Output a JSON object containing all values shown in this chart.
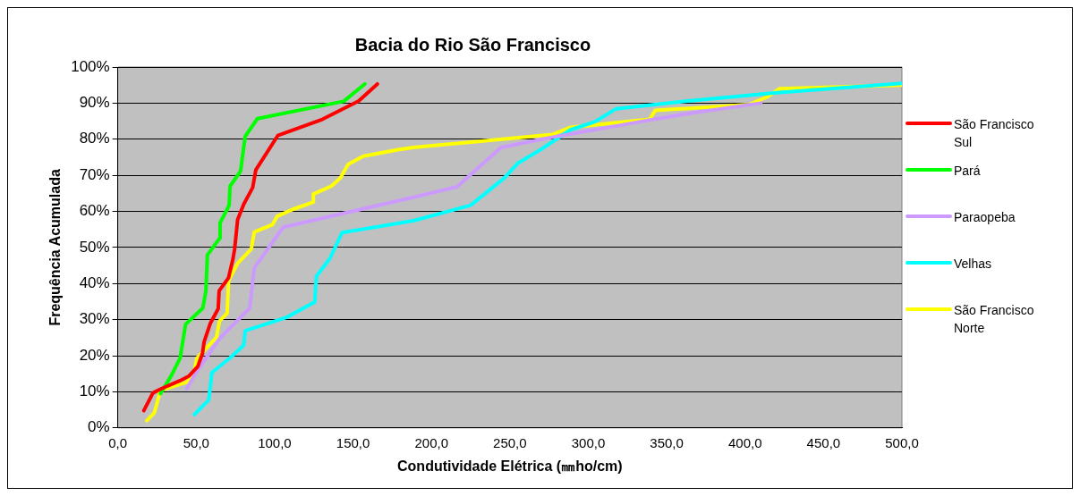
{
  "chart_data": {
    "type": "line",
    "title": "Bacia do Rio São Francisco",
    "xlabel": "Condutividade Elétrica (㎜ho/cm)",
    "ylabel": "Frequência Acumulada",
    "xlim": [
      0,
      500
    ],
    "xticks": [
      {
        "value": 0,
        "label": "0,0"
      },
      {
        "value": 50,
        "label": "50,0"
      },
      {
        "value": 100,
        "label": "100,0"
      },
      {
        "value": 150,
        "label": "150,0"
      },
      {
        "value": 200,
        "label": "200,0"
      },
      {
        "value": 250,
        "label": "250,0"
      },
      {
        "value": 300,
        "label": "300,0"
      },
      {
        "value": 350,
        "label": "350,0"
      },
      {
        "value": 400,
        "label": "400,0"
      },
      {
        "value": 450,
        "label": "450,0"
      },
      {
        "value": 500,
        "label": "500,0"
      }
    ],
    "ylim": [
      0,
      100
    ],
    "yticks": [
      {
        "value": 0,
        "label": "0%"
      },
      {
        "value": 10,
        "label": "10%"
      },
      {
        "value": 20,
        "label": "20%"
      },
      {
        "value": 30,
        "label": "30%"
      },
      {
        "value": 40,
        "label": "40%"
      },
      {
        "value": 50,
        "label": "50%"
      },
      {
        "value": 60,
        "label": "60%"
      },
      {
        "value": 70,
        "label": "70%"
      },
      {
        "value": 80,
        "label": "80%"
      },
      {
        "value": 90,
        "label": "90%"
      },
      {
        "value": 100,
        "label": "100%"
      }
    ],
    "grid": "y",
    "legend": "right",
    "marker": "none",
    "line_style": "solid",
    "series": [
      {
        "name": "São Francisco Sul",
        "color": "#ff0000",
        "x": [
          16.6,
          22.4,
          28,
          39.7,
          45.4,
          51,
          54,
          55,
          59,
          64,
          64.6,
          70.6,
          73.5,
          74.5,
          76.4,
          80.3,
          86,
          88,
          102,
          130.4,
          153.6,
          165.5
        ],
        "values": [
          4.8,
          9.7,
          10.9,
          13.1,
          14.4,
          17,
          20.7,
          23.8,
          29,
          33,
          38,
          41.6,
          47,
          49.6,
          57.7,
          62,
          66.6,
          71.5,
          81,
          85.5,
          90.6,
          95.3
        ]
      },
      {
        "name": "Pará",
        "color": "#00ff00",
        "x": [
          27.2,
          34,
          39.7,
          43.2,
          54.2,
          56.2,
          57.1,
          64.8,
          65.2,
          71,
          71.6,
          78.3,
          81.2,
          89,
          144,
          157.5
        ],
        "values": [
          9.5,
          14.4,
          19.3,
          28.7,
          33.2,
          38,
          47.9,
          52.5,
          56.8,
          61.7,
          67,
          71.2,
          80.8,
          85.7,
          90.5,
          95.3
        ]
      },
      {
        "name": "Paraopeba",
        "color": "#cc99ff",
        "x": [
          44,
          49.4,
          64.8,
          84.1,
          87,
          105.4,
          188.4,
          216.3,
          244.4,
          275.2,
          339,
          362,
          410
        ],
        "values": [
          10.9,
          15,
          24.7,
          33.2,
          44.3,
          55.6,
          63.9,
          66.8,
          77.7,
          80.4,
          85.3,
          87,
          90
        ]
      },
      {
        "name": "Velhas",
        "color": "#00ffff",
        "x": [
          48.8,
          58,
          60,
          72.6,
          80.3,
          81.2,
          108,
          125.6,
          126.6,
          135.3,
          143,
          188.4,
          225,
          246.3,
          255,
          269.5,
          288.7,
          304,
          317.6,
          362,
          420,
          500
        ],
        "values": [
          3.7,
          7.8,
          15.3,
          19.8,
          22.9,
          26.9,
          30.7,
          34.9,
          42,
          47,
          54.1,
          57.4,
          61.7,
          69.2,
          73.3,
          77.1,
          82.6,
          84.8,
          88.4,
          90.5,
          92.9,
          95.5
        ]
      },
      {
        "name": "São Francisco Norte",
        "color": "#ffff00",
        "x": [
          18.5,
          23.3,
          27.2,
          43.6,
          48.4,
          50.4,
          62.9,
          64.8,
          69.7,
          70.6,
          76.4,
          85.1,
          87,
          98.6,
          101.5,
          111.2,
          124.7,
          124.7,
          136.2,
          142,
          146.8,
          156.5,
          178.7,
          188.4,
          277,
          288.7,
          339,
          342.8,
          362,
          402.5,
          414,
          422,
          500
        ],
        "values": [
          2,
          4.2,
          10.4,
          12.6,
          14.9,
          19.3,
          25.1,
          29.6,
          31.8,
          40.7,
          45.6,
          49.6,
          54.3,
          56.3,
          58.6,
          60.5,
          62.6,
          64.8,
          67,
          69.3,
          73,
          75.3,
          77.1,
          77.7,
          81.3,
          83.3,
          85.5,
          88,
          88.5,
          89.6,
          91.7,
          94,
          95
        ]
      }
    ]
  }
}
